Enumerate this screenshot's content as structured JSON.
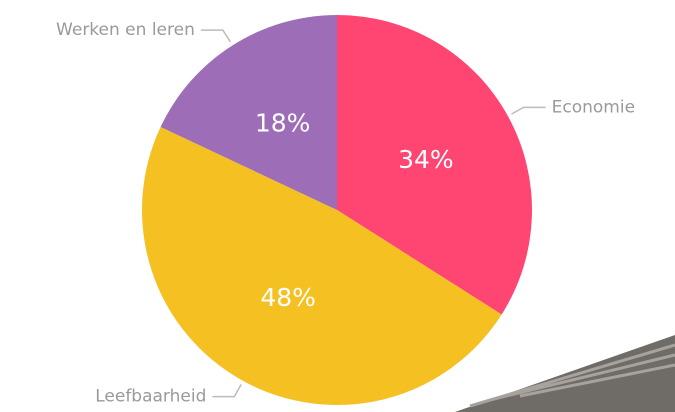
{
  "chart_data": {
    "type": "pie",
    "categories": [
      "Economie",
      "Leefbaarheid",
      "Werken en leren"
    ],
    "values": [
      34,
      48,
      18
    ],
    "value_labels": [
      "34%",
      "48%",
      "18%"
    ],
    "colors": [
      "#ff4571",
      "#f5c021",
      "#9e6db8"
    ]
  }
}
